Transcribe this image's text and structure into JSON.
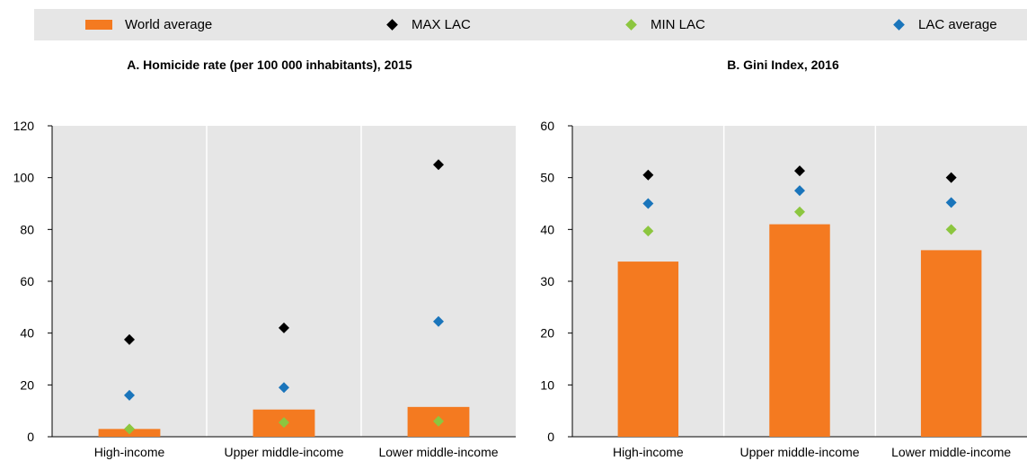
{
  "legend": {
    "items": [
      {
        "label": "World average",
        "color": "#f47a20",
        "shape": "bar"
      },
      {
        "label": "MAX LAC",
        "color": "#000000",
        "shape": "diamond"
      },
      {
        "label": "MIN LAC",
        "color": "#8cc63f",
        "shape": "diamond"
      },
      {
        "label": "LAC average",
        "color": "#1a75bb",
        "shape": "diamond"
      }
    ]
  },
  "chart_data": [
    {
      "type": "bar",
      "title": "A. Homicide rate (per 100 000 inhabitants), 2015",
      "categories": [
        "High-income",
        "Upper middle-income",
        "Lower middle-income"
      ],
      "ylim": [
        0,
        120
      ],
      "yticks": [
        0,
        20,
        40,
        60,
        80,
        100,
        120
      ],
      "grid": "vertical separators between categories",
      "series": [
        {
          "name": "World average",
          "kind": "bar",
          "color": "#f47a20",
          "values": [
            3,
            10.5,
            11.5
          ]
        },
        {
          "name": "MAX LAC",
          "kind": "marker",
          "color": "#000000",
          "values": [
            37.5,
            42,
            105
          ]
        },
        {
          "name": "MIN LAC",
          "kind": "marker",
          "color": "#8cc63f",
          "values": [
            3,
            5.5,
            6
          ]
        },
        {
          "name": "LAC average",
          "kind": "marker",
          "color": "#1a75bb",
          "values": [
            16,
            19,
            44.5
          ]
        }
      ]
    },
    {
      "type": "bar",
      "title": "B. Gini Index, 2016",
      "categories": [
        "High-income",
        "Upper middle-income",
        "Lower middle-income"
      ],
      "ylim": [
        0,
        60
      ],
      "yticks": [
        0,
        10,
        20,
        30,
        40,
        50,
        60
      ],
      "grid": "vertical separators between categories",
      "series": [
        {
          "name": "World average",
          "kind": "bar",
          "color": "#f47a20",
          "values": [
            33.8,
            41,
            36
          ]
        },
        {
          "name": "MAX LAC",
          "kind": "marker",
          "color": "#000000",
          "values": [
            50.5,
            51.3,
            50
          ]
        },
        {
          "name": "MIN LAC",
          "kind": "marker",
          "color": "#8cc63f",
          "values": [
            39.7,
            43.4,
            40
          ]
        },
        {
          "name": "LAC average",
          "kind": "marker",
          "color": "#1a75bb",
          "values": [
            45,
            47.5,
            45.2
          ]
        }
      ]
    }
  ]
}
